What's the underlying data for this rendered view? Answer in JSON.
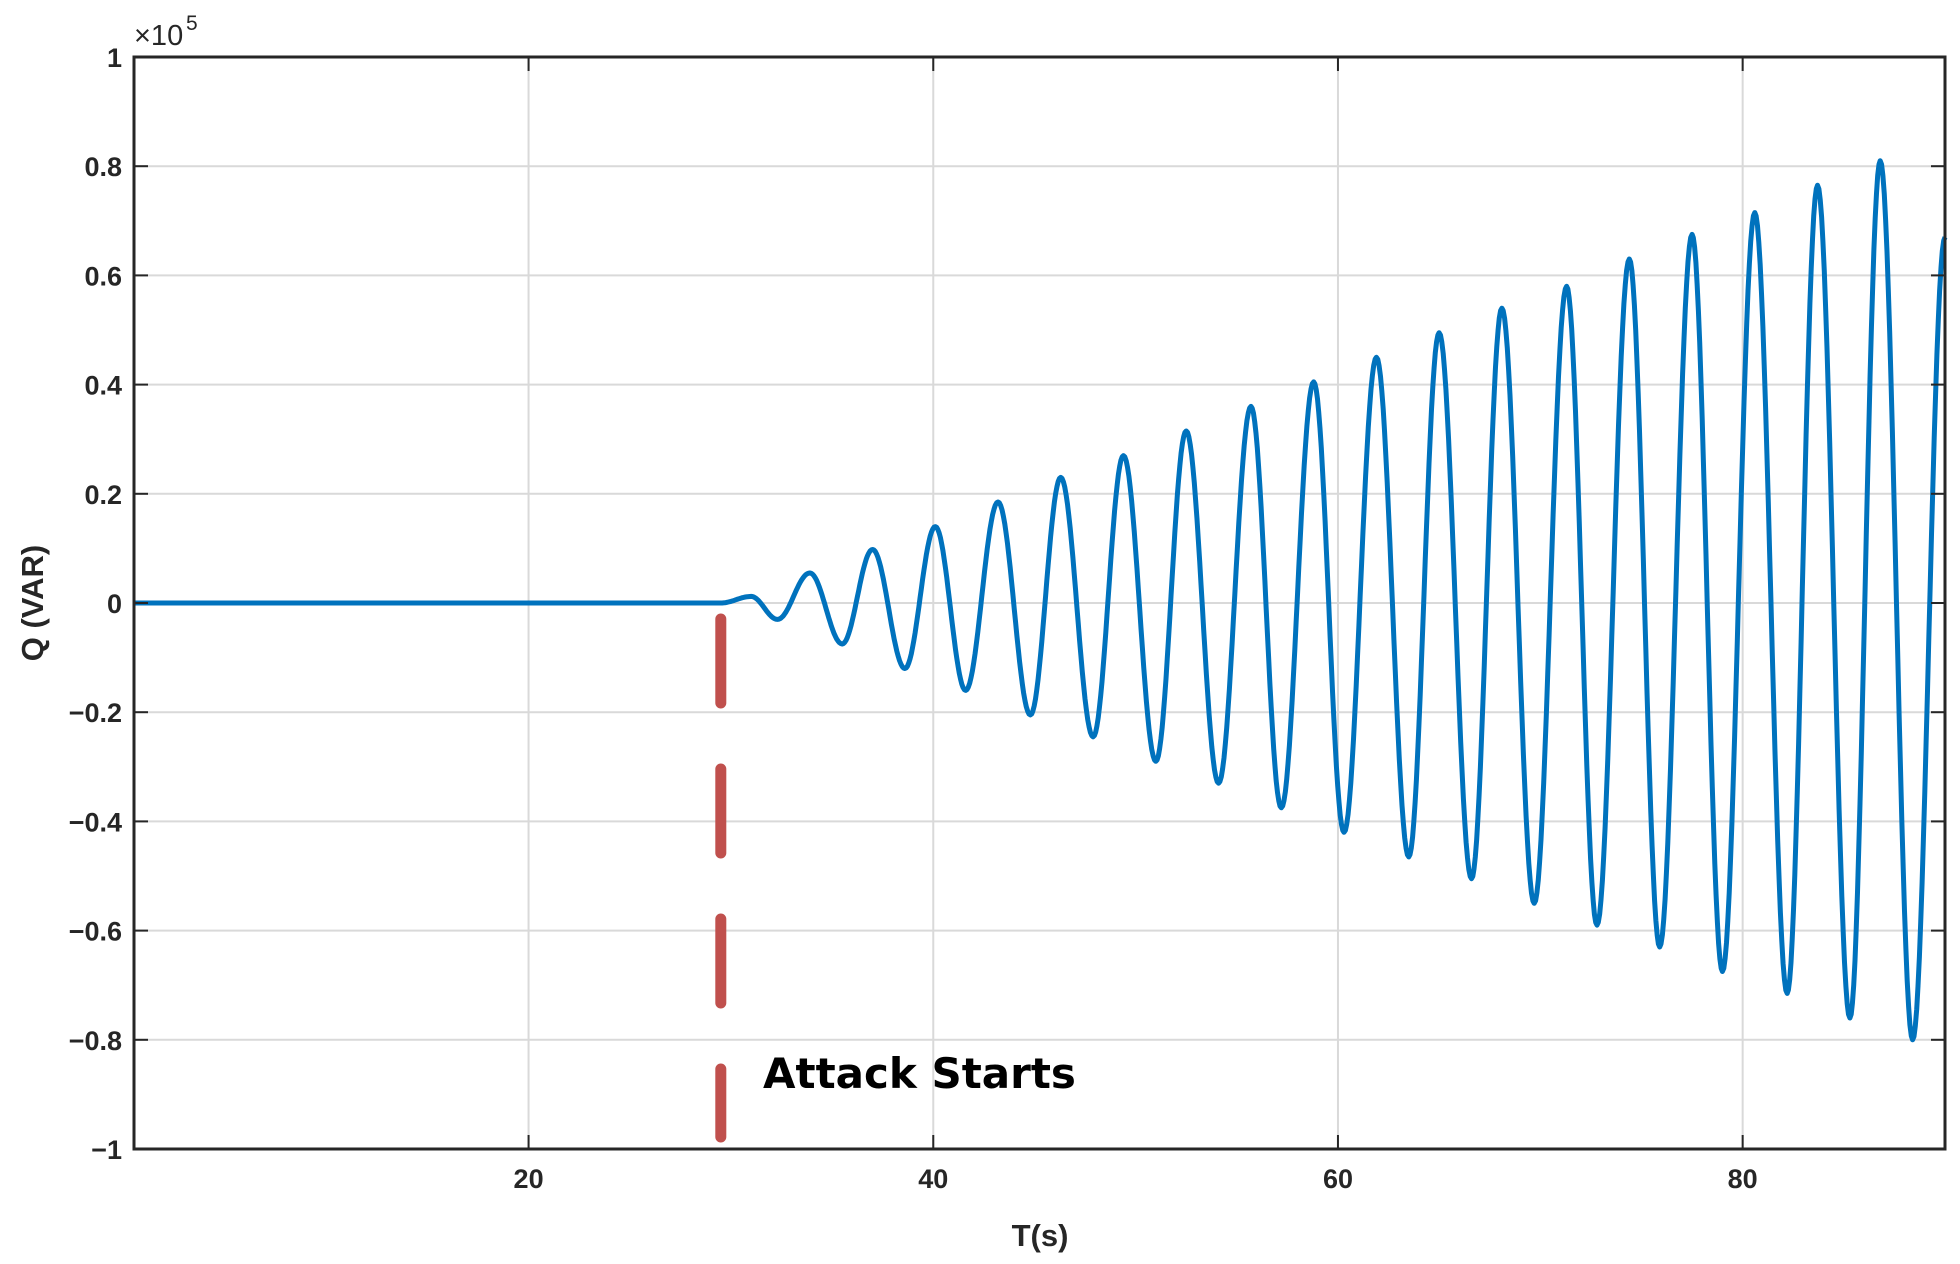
{
  "chart_data": {
    "type": "line",
    "title": "",
    "xlabel": "T(s)",
    "ylabel": "Q (VAR)",
    "y_exponent_label": "×10",
    "y_exponent_power": "5",
    "xlim": [
      0.5,
      90
    ],
    "ylim": [
      -1,
      1
    ],
    "y_scale_factor": 100000,
    "xticks": [
      20,
      40,
      60,
      80
    ],
    "xtick_labels": [
      "20",
      "40",
      "60",
      "80"
    ],
    "yticks": [
      -1,
      -0.8,
      -0.6,
      -0.4,
      -0.2,
      0,
      0.2,
      0.4,
      0.6,
      0.8,
      1
    ],
    "ytick_labels": [
      "−1",
      "−0.8",
      "−0.6",
      "−0.4",
      "−0.2",
      "0",
      "0.2",
      "0.4",
      "0.6",
      "0.8",
      "1"
    ],
    "grid": true,
    "series": [
      {
        "color": "#0072BD",
        "description_of_signal": "zero until ~29.5 s, then growing sinusoidal oscillation with ~3.2 s period",
        "x": [
          0.5,
          29.5,
          31.0,
          32.3,
          33.9,
          35.5,
          37.0,
          38.6,
          40.1,
          41.6,
          43.2,
          44.8,
          46.3,
          47.9,
          49.4,
          51.0,
          52.5,
          54.1,
          55.7,
          57.2,
          58.8,
          60.3,
          61.9,
          63.5,
          65.0,
          66.6,
          68.1,
          69.7,
          71.3,
          72.8,
          74.4,
          75.9,
          77.5,
          79.0,
          80.6,
          82.2,
          83.7,
          85.3,
          86.8,
          88.4,
          90.0
        ],
        "y": [
          0,
          0,
          0.012,
          -0.03,
          0.055,
          -0.075,
          0.098,
          -0.12,
          0.14,
          -0.16,
          0.185,
          -0.205,
          0.23,
          -0.245,
          0.27,
          -0.29,
          0.315,
          -0.33,
          0.36,
          -0.375,
          0.405,
          -0.42,
          0.45,
          -0.465,
          0.495,
          -0.505,
          0.54,
          -0.55,
          0.58,
          -0.59,
          0.63,
          -0.63,
          0.675,
          -0.675,
          0.715,
          -0.715,
          0.765,
          -0.76,
          0.81,
          -0.8,
          0.67
        ]
      }
    ],
    "marker_line": {
      "x": 29.5,
      "y_range": [
        -1,
        0
      ],
      "color": "#C0504D",
      "style": "dashed"
    },
    "annotations": [
      {
        "text": "Attack Starts",
        "x": 31.2,
        "y": -0.86
      }
    ]
  }
}
